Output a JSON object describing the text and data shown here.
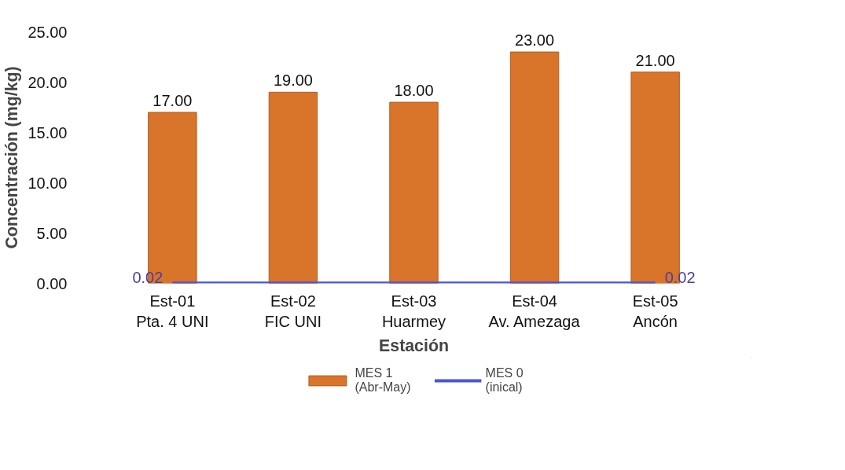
{
  "chart_data": {
    "type": "bar",
    "xlabel": "Estación",
    "ylabel": "Concentración (mg/kg)",
    "categories": [
      "Est-01\nPta. 4 UNI",
      "Est-02\nFIC UNI",
      "Est-03\nHuarmey",
      "Est-04\nAv. Amezaga",
      "Est-05\nAncón"
    ],
    "series": [
      {
        "name": "MES 1\n(Abr-May)",
        "color": "#d9742b",
        "values": [
          17,
          19,
          18,
          23,
          21
        ],
        "value_labels": [
          "17.00",
          "19.00",
          "18.00",
          "23.00",
          "21.00"
        ]
      },
      {
        "name": "MES 0\n(inical)",
        "type": "line",
        "color": "#4b55d6",
        "values": [
          0.02,
          0.02,
          0.02,
          0.02,
          0.02
        ],
        "value_labels": [
          "0.02",
          null,
          null,
          null,
          "0.02"
        ]
      }
    ],
    "ylim": [
      0,
      25
    ],
    "yticks": [
      {
        "value": 0,
        "label": "0.00"
      },
      {
        "value": 5,
        "label": "5.00"
      },
      {
        "value": 10,
        "label": "10.00"
      },
      {
        "value": 15,
        "label": "15.00"
      },
      {
        "value": 20,
        "label": "20.00"
      },
      {
        "value": 25,
        "label": "25.00"
      }
    ],
    "grid": false,
    "legend": "bottom"
  }
}
